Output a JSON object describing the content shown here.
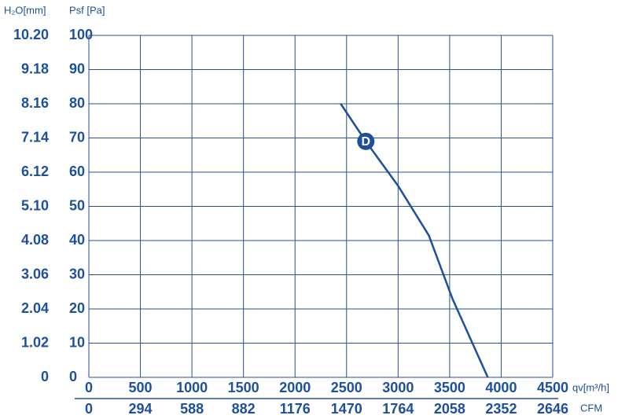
{
  "chart_data": {
    "type": "line",
    "y_label": "Psf [Pa]",
    "y2_label": "H₂O[mm]",
    "x_label": "qv[m³/h]",
    "x2_label": "CFM",
    "series": [
      {
        "name": "D",
        "color": "#1d4f9c",
        "x": [
          2443,
          2687,
          3000,
          3298,
          3527,
          3870
        ],
        "values": [
          80,
          69,
          56,
          41.5,
          23,
          0
        ]
      }
    ],
    "xlim": [
      0,
      4500
    ],
    "xticks": [
      0,
      500,
      1000,
      1500,
      2000,
      2500,
      3000,
      3500,
      4000,
      4500
    ],
    "x2lim": [
      0,
      2646
    ],
    "x2ticks": [
      0,
      294,
      588,
      882,
      1176,
      1470,
      1764,
      2058,
      2352,
      2646
    ],
    "ylim": [
      0,
      100
    ],
    "yticks": [
      0,
      10,
      20,
      30,
      40,
      50,
      60,
      70,
      80,
      90,
      100
    ],
    "y2lim": [
      0,
      10.2
    ],
    "y2ticks": [
      0,
      1.02,
      2.04,
      3.06,
      4.08,
      {
        "value": 5.1,
        "label": "5.10"
      },
      6.12,
      7.14,
      8.16,
      9.18,
      {
        "value": 10.2,
        "label": "10.20"
      }
    ],
    "grid": true
  }
}
